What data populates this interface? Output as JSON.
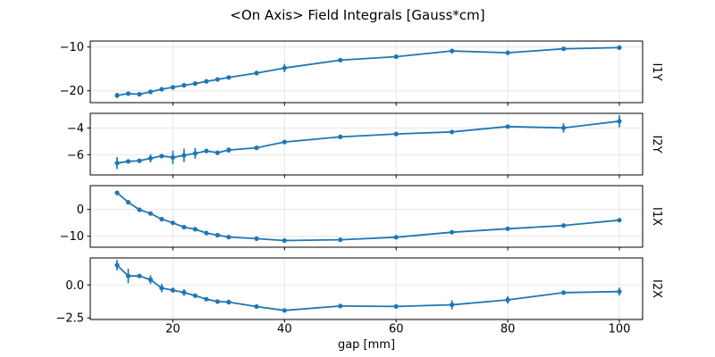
{
  "chart_data": {
    "type": "line",
    "title": "<On Axis> Field Integrals [Gauss*cm]",
    "xlabel": "gap [mm]",
    "grid": true,
    "legend_position": "none",
    "line_color": "#1f77b4",
    "grid_color": "#e6e6e6",
    "spine_color": "#000000",
    "background_color": "#ffffff",
    "marker": "dot",
    "error_bars": true,
    "x": [
      10,
      12,
      14,
      16,
      18,
      20,
      22,
      24,
      26,
      28,
      30,
      35,
      40,
      50,
      60,
      70,
      80,
      90,
      100
    ],
    "xlim": [
      5.2,
      104.16
    ],
    "xticks": [
      20,
      40,
      60,
      80,
      100
    ],
    "xtick_labels": [
      "20",
      "40",
      "60",
      "80",
      "100"
    ],
    "panels": [
      {
        "label": "I1Y",
        "ylim": [
          -22.71,
          -8.63
        ],
        "yticks": [
          -10,
          -20
        ],
        "ytick_labels": [
          "−10",
          "−20"
        ],
        "values": [
          -21.05,
          -20.65,
          -20.8,
          -20.25,
          -19.65,
          -19.2,
          -18.75,
          -18.35,
          -17.85,
          -17.4,
          -16.95,
          -15.95,
          -14.8,
          -13.0,
          -12.2,
          -10.9,
          -11.3,
          -10.4,
          -10.15
        ],
        "errors": [
          0.6,
          0.3,
          0.3,
          0.35,
          0.3,
          0.5,
          0.35,
          0.45,
          0.5,
          0.4,
          0.3,
          0.55,
          0.95,
          0.2,
          0.2,
          0.5,
          0.3,
          0.2,
          0.45
        ]
      },
      {
        "label": "I2Y",
        "ylim": [
          -7.51,
          -2.91
        ],
        "yticks": [
          -4,
          -6
        ],
        "ytick_labels": [
          "−4",
          "−6"
        ],
        "values": [
          -6.62,
          -6.5,
          -6.45,
          -6.27,
          -6.1,
          -6.2,
          -6.05,
          -5.9,
          -5.72,
          -5.85,
          -5.65,
          -5.48,
          -5.05,
          -4.67,
          -4.45,
          -4.3,
          -3.9,
          -4.0,
          -3.5
        ],
        "errors": [
          0.45,
          0.15,
          0.15,
          0.3,
          0.15,
          0.5,
          0.5,
          0.4,
          0.15,
          0.15,
          0.2,
          0.15,
          0.15,
          0.1,
          0.1,
          0.1,
          0.1,
          0.35,
          0.45
        ]
      },
      {
        "label": "I1X",
        "ylim": [
          -14.1,
          8.9
        ],
        "yticks": [
          0,
          -10
        ],
        "ytick_labels": [
          "0",
          "−10"
        ],
        "values": [
          6.2,
          2.7,
          -0.1,
          -1.5,
          -3.6,
          -5.0,
          -6.6,
          -7.4,
          -8.8,
          -9.6,
          -10.3,
          -10.9,
          -11.6,
          -11.3,
          -10.35,
          -8.5,
          -7.2,
          -6.0,
          -4.0
        ],
        "errors": [
          0.6,
          0.5,
          0.4,
          0.4,
          0.4,
          0.4,
          0.4,
          0.45,
          0.4,
          0.35,
          0.3,
          0.3,
          0.35,
          0.25,
          0.25,
          0.3,
          0.25,
          0.25,
          0.3
        ]
      },
      {
        "label": "I2X",
        "ylim": [
          -2.62,
          2.05
        ],
        "yticks": [
          0,
          -2.5
        ],
        "ytick_labels": [
          "0.0",
          "−2.5"
        ],
        "values": [
          1.5,
          0.68,
          0.68,
          0.4,
          -0.23,
          -0.39,
          -0.57,
          -0.81,
          -1.08,
          -1.26,
          -1.3,
          -1.64,
          -1.93,
          -1.6,
          -1.63,
          -1.5,
          -1.13,
          -0.58,
          -0.5
        ],
        "errors": [
          0.4,
          0.55,
          0.15,
          0.33,
          0.32,
          0.2,
          0.25,
          0.15,
          0.15,
          0.1,
          0.18,
          0.1,
          0.1,
          0.1,
          0.1,
          0.35,
          0.28,
          0.1,
          0.3
        ]
      }
    ]
  }
}
